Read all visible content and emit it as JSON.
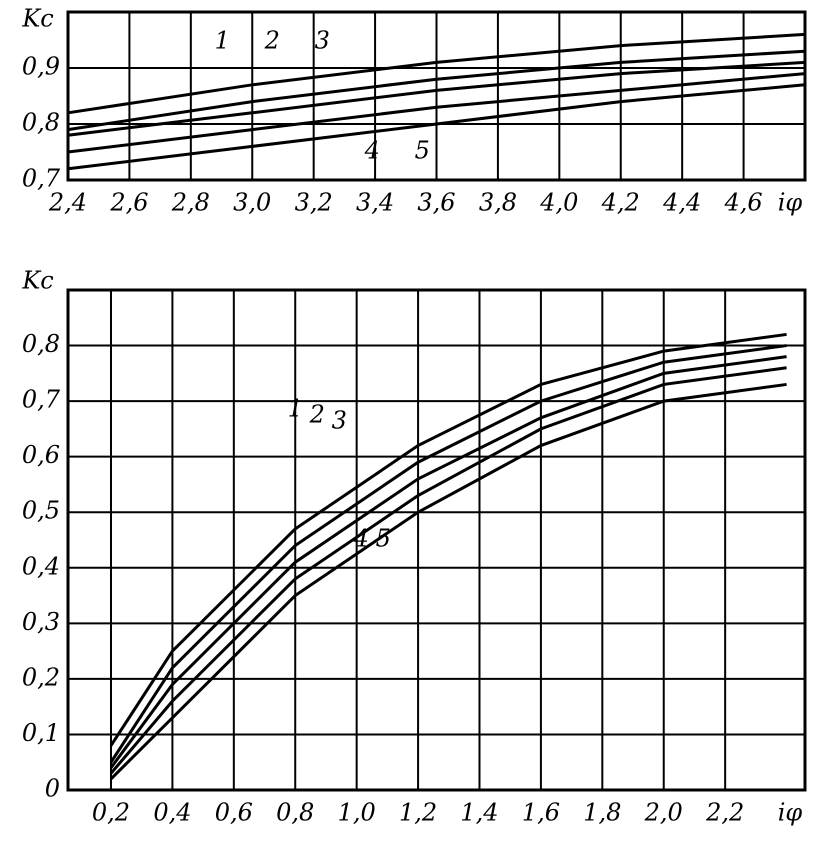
{
  "chart_data": [
    {
      "type": "line",
      "y_label": "Kc",
      "x_label": "iφ",
      "x": [
        2.4,
        3.0,
        3.6,
        4.2,
        4.8
      ],
      "series": [
        {
          "name": "1",
          "color": "#000000",
          "values": [
            0.82,
            0.87,
            0.91,
            0.94,
            0.96
          ]
        },
        {
          "name": "2",
          "color": "#000000",
          "values": [
            0.79,
            0.84,
            0.88,
            0.91,
            0.93
          ]
        },
        {
          "name": "3",
          "color": "#000000",
          "values": [
            0.78,
            0.82,
            0.86,
            0.89,
            0.91
          ]
        },
        {
          "name": "4",
          "color": "#000000",
          "values": [
            0.75,
            0.79,
            0.83,
            0.86,
            0.89
          ]
        },
        {
          "name": "5",
          "color": "#000000",
          "values": [
            0.72,
            0.76,
            0.8,
            0.84,
            0.87
          ]
        }
      ],
      "xlim": [
        2.4,
        4.8
      ],
      "ylim": [
        0.7,
        1.0
      ],
      "xticks": [
        {
          "value": 2.4,
          "label": "2,4"
        },
        {
          "value": 2.6,
          "label": "2,6"
        },
        {
          "value": 2.8,
          "label": "2,8"
        },
        {
          "value": 3.0,
          "label": "3,0"
        },
        {
          "value": 3.2,
          "label": "3,2"
        },
        {
          "value": 3.4,
          "label": "3,4"
        },
        {
          "value": 3.6,
          "label": "3,6"
        },
        {
          "value": 3.8,
          "label": "3,8"
        },
        {
          "value": 4.0,
          "label": "4,0"
        },
        {
          "value": 4.2,
          "label": "4,2"
        },
        {
          "value": 4.4,
          "label": "4,4"
        },
        {
          "value": 4.6,
          "label": "4,6"
        }
      ],
      "yticks": [
        {
          "value": 0.7,
          "label": "0,7"
        },
        {
          "value": 0.8,
          "label": "0,8"
        },
        {
          "value": 0.9,
          "label": "0,9"
        }
      ],
      "grid": true
    },
    {
      "type": "line",
      "y_label": "Kc",
      "x_label": "iφ",
      "x": [
        0.2,
        0.4,
        0.8,
        1.2,
        1.6,
        2.0,
        2.4
      ],
      "series": [
        {
          "name": "1",
          "color": "#000000",
          "values": [
            0.08,
            0.25,
            0.47,
            0.62,
            0.73,
            0.79,
            0.82
          ]
        },
        {
          "name": "2",
          "color": "#000000",
          "values": [
            0.05,
            0.22,
            0.44,
            0.59,
            0.7,
            0.77,
            0.8
          ]
        },
        {
          "name": "3",
          "color": "#000000",
          "values": [
            0.04,
            0.19,
            0.41,
            0.56,
            0.67,
            0.75,
            0.78
          ]
        },
        {
          "name": "4",
          "color": "#000000",
          "values": [
            0.03,
            0.16,
            0.38,
            0.53,
            0.65,
            0.73,
            0.76
          ]
        },
        {
          "name": "5",
          "color": "#000000",
          "values": [
            0.02,
            0.13,
            0.35,
            0.5,
            0.62,
            0.7,
            0.73
          ]
        }
      ],
      "xlim": [
        0.06,
        2.46
      ],
      "ylim": [
        0,
        0.9
      ],
      "xticks": [
        {
          "value": 0.2,
          "label": "0,2"
        },
        {
          "value": 0.4,
          "label": "0,4"
        },
        {
          "value": 0.6,
          "label": "0,6"
        },
        {
          "value": 0.8,
          "label": "0,8"
        },
        {
          "value": 1.0,
          "label": "1,0"
        },
        {
          "value": 1.2,
          "label": "1,2"
        },
        {
          "value": 1.4,
          "label": "1,4"
        },
        {
          "value": 1.6,
          "label": "1,6"
        },
        {
          "value": 1.8,
          "label": "1,8"
        },
        {
          "value": 2.0,
          "label": "2,0"
        },
        {
          "value": 2.2,
          "label": "2,2"
        }
      ],
      "yticks": [
        0,
        {
          "value": 0.1,
          "label": "0,1"
        },
        {
          "value": 0.2,
          "label": "0,2"
        },
        {
          "value": 0.3,
          "label": "0,3"
        },
        {
          "value": 0.4,
          "label": "0,4"
        },
        {
          "value": 0.5,
          "label": "0,5"
        },
        {
          "value": 0.6,
          "label": "0,6"
        },
        {
          "value": 0.7,
          "label": "0,7"
        },
        {
          "value": 0.8,
          "label": "0,8"
        }
      ],
      "grid": true
    }
  ]
}
